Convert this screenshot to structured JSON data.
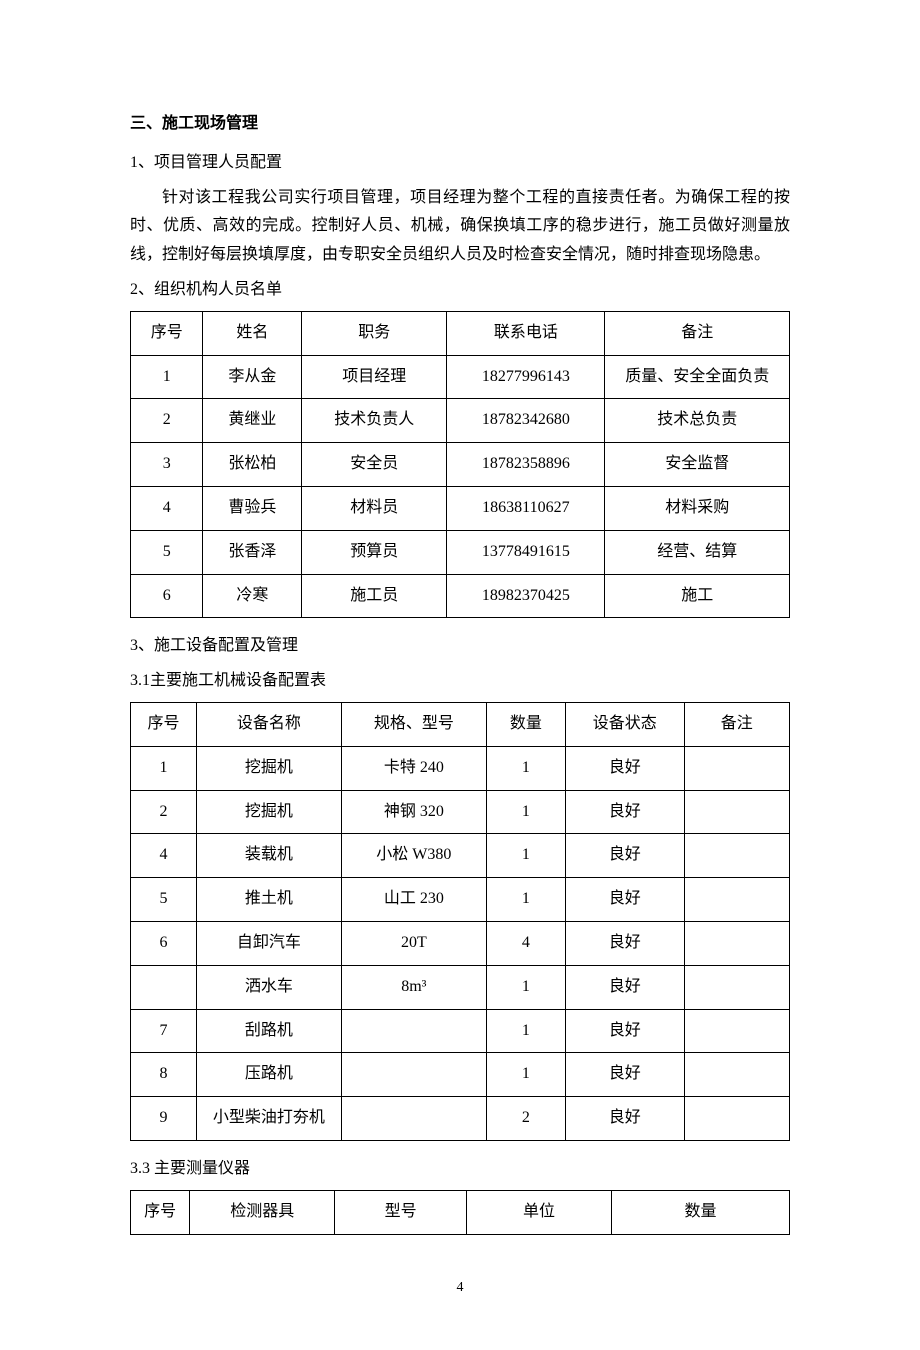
{
  "section_title": "三、施工现场管理",
  "sub1_title": "1、项目管理人员配置",
  "body_para": "针对该工程我公司实行项目管理，项目经理为整个工程的直接责任者。为确保工程的按时、优质、高效的完成。控制好人员、机械，确保换填工序的稳步进行，施工员做好测量放线，控制好每层换填厚度，由专职安全员组织人员及时检查安全情况，随时排查现场隐患。",
  "sub2_title": "2、组织机构人员名单",
  "table1": {
    "col_widths": [
      "11%",
      "15%",
      "22%",
      "24%",
      "28%"
    ],
    "headers": [
      "序号",
      "姓名",
      "职务",
      "联系电话",
      "备注"
    ],
    "rows": [
      [
        "1",
        "李从金",
        "项目经理",
        "18277996143",
        "质量、安全全面负责"
      ],
      [
        "2",
        "黄继业",
        "技术负责人",
        "18782342680",
        "技术总负责"
      ],
      [
        "3",
        "张松柏",
        "安全员",
        "18782358896",
        "安全监督"
      ],
      [
        "4",
        "曹验兵",
        "材料员",
        "18638110627",
        "材料采购"
      ],
      [
        "5",
        "张香泽",
        "预算员",
        "13778491615",
        "经营、结算"
      ],
      [
        "6",
        "冷寒",
        "施工员",
        "18982370425",
        "施工"
      ]
    ]
  },
  "sub3_title": "3、施工设备配置及管理",
  "sub3_1_title": "3.1主要施工机械设备配置表",
  "table2": {
    "col_widths": [
      "10%",
      "22%",
      "22%",
      "12%",
      "18%",
      "16%"
    ],
    "headers": [
      "序号",
      "设备名称",
      "规格、型号",
      "数量",
      "设备状态",
      "备注"
    ],
    "rows": [
      [
        "1",
        "挖掘机",
        "卡特 240",
        "1",
        "良好",
        ""
      ],
      [
        "2",
        "挖掘机",
        "神钢 320",
        "1",
        "良好",
        ""
      ],
      [
        "4",
        "装载机",
        "小松 W380",
        "1",
        "良好",
        ""
      ],
      [
        "5",
        "推土机",
        "山工 230",
        "1",
        "良好",
        ""
      ],
      [
        "6",
        "自卸汽车",
        "20T",
        "4",
        "良好",
        ""
      ],
      [
        "",
        "洒水车",
        "8m³",
        "1",
        "良好",
        ""
      ],
      [
        "7",
        "刮路机",
        "",
        "1",
        "良好",
        ""
      ],
      [
        "8",
        "压路机",
        "",
        "1",
        "良好",
        ""
      ],
      [
        "9",
        "小型柴油打夯机",
        "",
        "2",
        "良好",
        ""
      ]
    ]
  },
  "sub3_3_title": "3.3 主要测量仪器",
  "table3": {
    "col_widths": [
      "9%",
      "22%",
      "20%",
      "22%",
      "27%"
    ],
    "headers": [
      "序号",
      "检测器具",
      "型号",
      "单位",
      "数量"
    ]
  },
  "page_number": "4",
  "style": {
    "text_color": "#000000",
    "background_color": "#ffffff",
    "border_color": "#000000",
    "body_fontsize": 16,
    "page_num_fontsize": 14
  }
}
